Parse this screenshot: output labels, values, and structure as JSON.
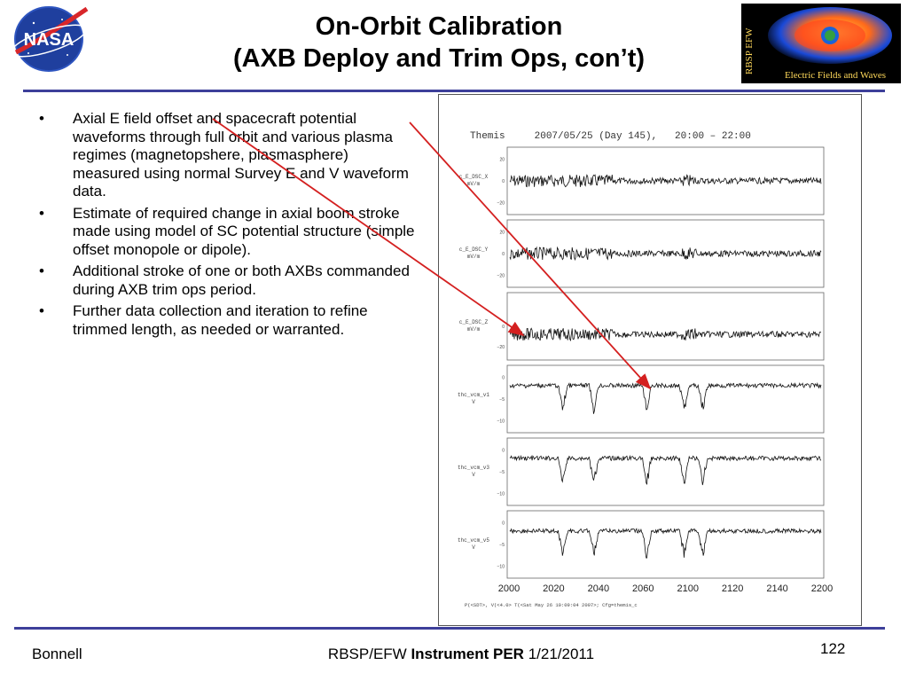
{
  "slide": {
    "title_line1": "On-Orbit Calibration",
    "title_line2": "(AXB Deploy and Trim Ops, con’t)",
    "bullets": [
      "Axial E field offset and spacecraft potential waveforms through full orbit and various plasma regimes (magnetopshere, plasmasphere) measured using normal Survey E and V waveform data.",
      "Estimate of required change in axial boom stroke made using model of SC potential structure (simple offset monopole or dipole).",
      "Additional stroke of one or both AXBs commanded during AXB trim ops period.",
      "Further data collection and iteration to refine trimmed length, as needed or warranted."
    ],
    "bullet_symbol": "•"
  },
  "logos": {
    "nasa_text": "NASA",
    "rbsp_text": "RBSP EFW",
    "rbsp_caption": "Electric Fields and Waves"
  },
  "plot": {
    "header": "Themis     2007/05/25 (Day 145),   20:00 – 22:00",
    "panels": [
      {
        "label": "c_E_DSC_X",
        "unit": "mV/m",
        "ticks": [
          "20",
          "0",
          "−20"
        ]
      },
      {
        "label": "c_E_DSC_Y",
        "unit": "mV/m",
        "ticks": [
          "20",
          "0",
          "−20"
        ]
      },
      {
        "label": "c_E_DSC_Z",
        "unit": "mV/m",
        "ticks": [
          "0",
          "−20"
        ]
      },
      {
        "label": "thc_vcm_v1",
        "unit": "V",
        "ticks": [
          "0",
          "−5",
          "−10"
        ]
      },
      {
        "label": "thc_vcm_v3",
        "unit": "V",
        "ticks": [
          "0",
          "−5",
          "−10"
        ]
      },
      {
        "label": "thc_vcm_v5",
        "unit": "V",
        "ticks": [
          "0",
          "−5",
          "−10"
        ]
      }
    ],
    "x_ticks": [
      "2000",
      "2020",
      "2040",
      "2060",
      "2100",
      "2120",
      "2140",
      "2200"
    ],
    "footnote": "P(<SDT>, V(<4.0>  T(<Sat May 26 10:09:04 2007>;   Cfg=themis_c"
  },
  "footer": {
    "left": "Bonnell",
    "center_prefix": "RBSP/EFW ",
    "center_bold": "Instrument PER",
    "center_suffix": " 1/21/2011",
    "page_number": "122"
  },
  "colors": {
    "rule": "#3d3f9a",
    "arrow": "#d42020"
  }
}
